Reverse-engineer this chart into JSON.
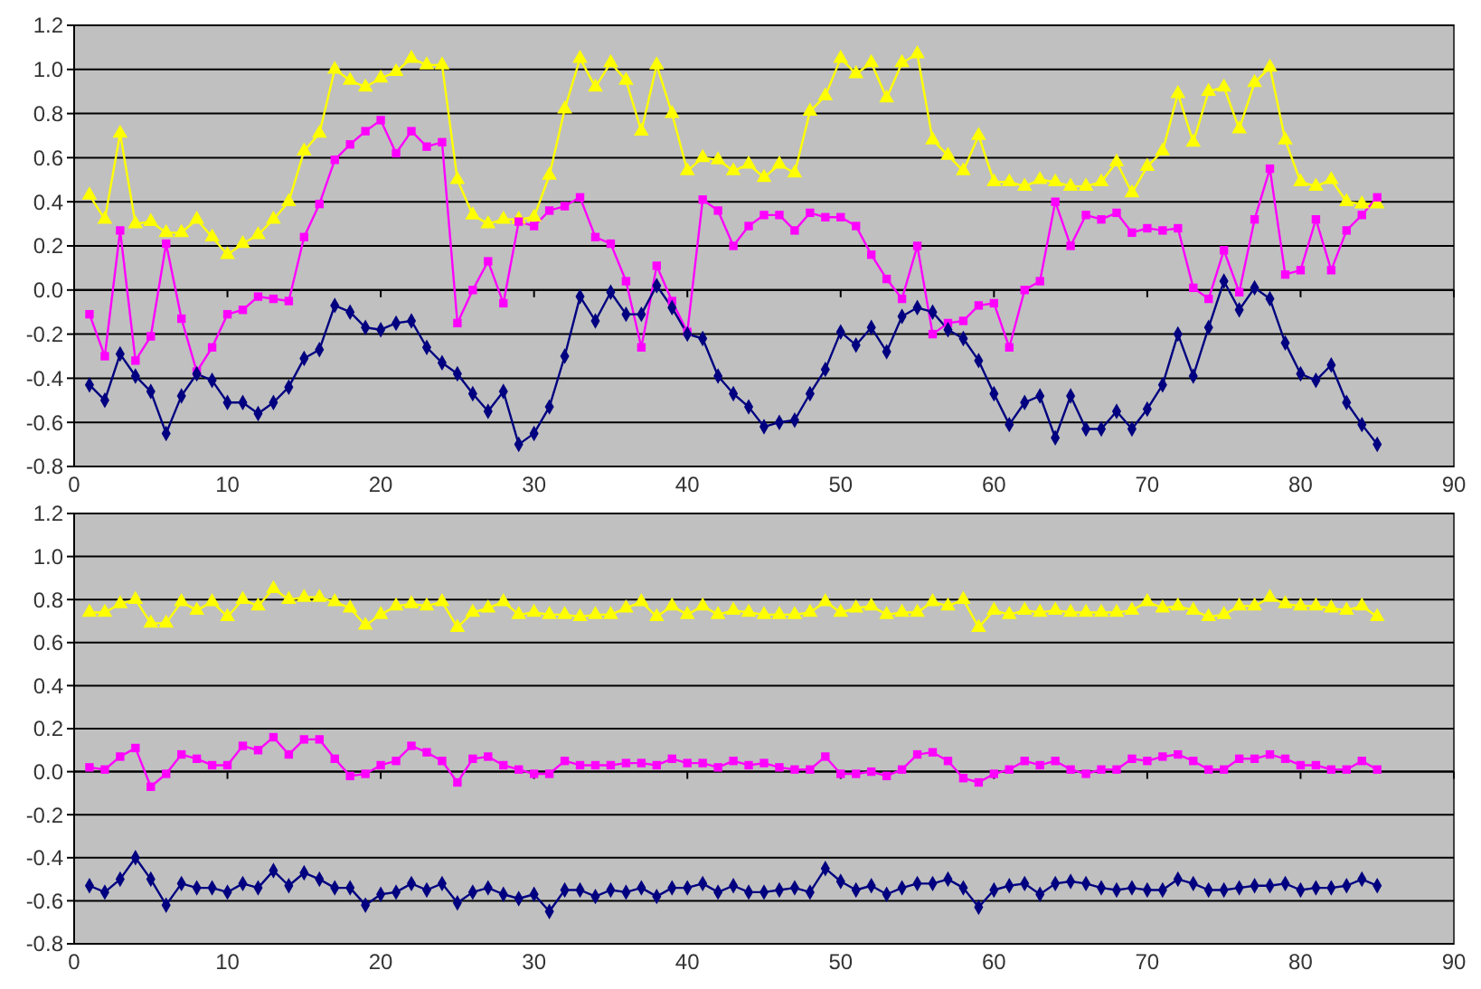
{
  "chart_data": [
    {
      "type": "line",
      "x": [
        1,
        2,
        3,
        4,
        5,
        6,
        7,
        8,
        9,
        10,
        11,
        12,
        13,
        14,
        15,
        16,
        17,
        18,
        19,
        20,
        21,
        22,
        23,
        24,
        25,
        26,
        27,
        28,
        29,
        30,
        31,
        32,
        33,
        34,
        35,
        36,
        37,
        38,
        39,
        40,
        41,
        42,
        43,
        44,
        45,
        46,
        47,
        48,
        49,
        50,
        51,
        52,
        53,
        54,
        55,
        56,
        57,
        58,
        59,
        60,
        61,
        62,
        63,
        64,
        65,
        66,
        67,
        68,
        69,
        70,
        71,
        72,
        73,
        74,
        75,
        76,
        77,
        78,
        79,
        80,
        81,
        82,
        83,
        84,
        85
      ],
      "xlim": [
        0,
        90
      ],
      "xticks": [
        0,
        10,
        20,
        30,
        40,
        50,
        60,
        70,
        80,
        90
      ],
      "ylim": [
        -0.8,
        1.2
      ],
      "yticks": [
        {
          "value": -0.8,
          "label": "-0.8"
        },
        {
          "value": -0.6,
          "label": "-0.6"
        },
        {
          "value": -0.4,
          "label": "-0.4"
        },
        {
          "value": -0.2,
          "label": "-0.2"
        },
        {
          "value": 0,
          "label": "0.0"
        },
        {
          "value": 0.2,
          "label": "0.2"
        },
        {
          "value": 0.4,
          "label": "0.4"
        },
        {
          "value": 0.6,
          "label": "0.6"
        },
        {
          "value": 0.8,
          "label": "0.8"
        },
        {
          "value": 1,
          "label": "1.0"
        },
        {
          "value": 1.2,
          "label": "1.2"
        }
      ],
      "grid": "y",
      "series": [
        {
          "color": "#ffff00",
          "marker": "triangle",
          "values": [
            0.43,
            0.32,
            0.71,
            0.3,
            0.31,
            0.26,
            0.26,
            0.32,
            0.24,
            0.16,
            0.21,
            0.25,
            0.32,
            0.4,
            0.63,
            0.71,
            1.0,
            0.95,
            0.92,
            0.96,
            0.99,
            1.05,
            1.02,
            1.02,
            0.5,
            0.34,
            0.3,
            0.32,
            0.32,
            0.33,
            0.52,
            0.82,
            1.05,
            0.92,
            1.03,
            0.95,
            0.72,
            1.02,
            0.8,
            0.54,
            0.6,
            0.59,
            0.54,
            0.57,
            0.51,
            0.57,
            0.53,
            0.81,
            0.88,
            1.05,
            0.98,
            1.03,
            0.87,
            1.03,
            1.07,
            0.68,
            0.61,
            0.54,
            0.7,
            0.49,
            0.49,
            0.47,
            0.5,
            0.49,
            0.47,
            0.47,
            0.49,
            0.58,
            0.44,
            0.56,
            0.63,
            0.89,
            0.67,
            0.9,
            0.92,
            0.73,
            0.94,
            1.01,
            0.68,
            0.49,
            0.47,
            0.5,
            0.4,
            0.39,
            0.39
          ]
        },
        {
          "color": "#ff00ff",
          "marker": "square",
          "values": [
            -0.11,
            -0.3,
            0.27,
            -0.32,
            -0.21,
            0.21,
            -0.13,
            -0.37,
            -0.26,
            -0.11,
            -0.09,
            -0.03,
            -0.04,
            -0.05,
            0.24,
            0.39,
            0.59,
            0.66,
            0.72,
            0.77,
            0.62,
            0.72,
            0.65,
            0.67,
            -0.15,
            0.0,
            0.13,
            -0.06,
            0.31,
            0.29,
            0.36,
            0.38,
            0.42,
            0.24,
            0.21,
            0.04,
            -0.26,
            0.11,
            -0.05,
            -0.19,
            0.41,
            0.36,
            0.2,
            0.29,
            0.34,
            0.34,
            0.27,
            0.35,
            0.33,
            0.33,
            0.29,
            0.16,
            0.05,
            -0.04,
            0.2,
            -0.2,
            -0.15,
            -0.14,
            -0.07,
            -0.06,
            -0.26,
            0.0,
            0.04,
            0.4,
            0.2,
            0.34,
            0.32,
            0.35,
            0.26,
            0.28,
            0.27,
            0.28,
            0.01,
            -0.04,
            0.18,
            -0.01,
            0.32,
            0.55,
            0.07,
            0.09,
            0.32,
            0.09,
            0.27,
            0.34,
            0.42
          ]
        },
        {
          "color": "#000080",
          "marker": "diamond",
          "values": [
            -0.43,
            -0.5,
            -0.29,
            -0.39,
            -0.46,
            -0.65,
            -0.48,
            -0.38,
            -0.41,
            -0.51,
            -0.51,
            -0.56,
            -0.51,
            -0.44,
            -0.31,
            -0.27,
            -0.07,
            -0.1,
            -0.17,
            -0.18,
            -0.15,
            -0.14,
            -0.26,
            -0.33,
            -0.38,
            -0.47,
            -0.55,
            -0.46,
            -0.7,
            -0.65,
            -0.53,
            -0.3,
            -0.03,
            -0.14,
            -0.01,
            -0.11,
            -0.11,
            0.02,
            -0.08,
            -0.2,
            -0.22,
            -0.39,
            -0.47,
            -0.53,
            -0.62,
            -0.6,
            -0.59,
            -0.47,
            -0.36,
            -0.19,
            -0.25,
            -0.17,
            -0.28,
            -0.12,
            -0.08,
            -0.1,
            -0.18,
            -0.22,
            -0.32,
            -0.47,
            -0.61,
            -0.51,
            -0.48,
            -0.67,
            -0.48,
            -0.63,
            -0.63,
            -0.55,
            -0.63,
            -0.54,
            -0.43,
            -0.2,
            -0.39,
            -0.17,
            0.04,
            -0.09,
            0.01,
            -0.04,
            -0.24,
            -0.38,
            -0.41,
            -0.34,
            -0.51,
            -0.61,
            -0.7
          ]
        }
      ]
    },
    {
      "type": "line",
      "x": [
        1,
        2,
        3,
        4,
        5,
        6,
        7,
        8,
        9,
        10,
        11,
        12,
        13,
        14,
        15,
        16,
        17,
        18,
        19,
        20,
        21,
        22,
        23,
        24,
        25,
        26,
        27,
        28,
        29,
        30,
        31,
        32,
        33,
        34,
        35,
        36,
        37,
        38,
        39,
        40,
        41,
        42,
        43,
        44,
        45,
        46,
        47,
        48,
        49,
        50,
        51,
        52,
        53,
        54,
        55,
        56,
        57,
        58,
        59,
        60,
        61,
        62,
        63,
        64,
        65,
        66,
        67,
        68,
        69,
        70,
        71,
        72,
        73,
        74,
        75,
        76,
        77,
        78,
        79,
        80,
        81,
        82,
        83,
        84,
        85
      ],
      "xlim": [
        0,
        90
      ],
      "xticks": [
        0,
        10,
        20,
        30,
        40,
        50,
        60,
        70,
        80,
        90
      ],
      "ylim": [
        -0.8,
        1.2
      ],
      "yticks": [
        {
          "value": -0.8,
          "label": "-0.8"
        },
        {
          "value": -0.6,
          "label": "-0.6"
        },
        {
          "value": -0.4,
          "label": "-0.4"
        },
        {
          "value": -0.2,
          "label": "-0.2"
        },
        {
          "value": 0,
          "label": "0.0"
        },
        {
          "value": 0.2,
          "label": "0.2"
        },
        {
          "value": 0.4,
          "label": "0.4"
        },
        {
          "value": 0.6,
          "label": "0.6"
        },
        {
          "value": 0.8,
          "label": "0.8"
        },
        {
          "value": 1,
          "label": "1.0"
        },
        {
          "value": 1.2,
          "label": "1.2"
        }
      ],
      "grid": "y",
      "series": [
        {
          "color": "#ffff00",
          "marker": "triangle",
          "values": [
            0.74,
            0.74,
            0.78,
            0.8,
            0.69,
            0.69,
            0.79,
            0.75,
            0.79,
            0.72,
            0.8,
            0.77,
            0.85,
            0.8,
            0.81,
            0.81,
            0.79,
            0.76,
            0.68,
            0.73,
            0.77,
            0.78,
            0.77,
            0.79,
            0.67,
            0.74,
            0.76,
            0.79,
            0.73,
            0.74,
            0.73,
            0.73,
            0.72,
            0.73,
            0.73,
            0.76,
            0.79,
            0.72,
            0.77,
            0.73,
            0.77,
            0.73,
            0.75,
            0.74,
            0.73,
            0.73,
            0.73,
            0.74,
            0.79,
            0.74,
            0.76,
            0.77,
            0.73,
            0.74,
            0.74,
            0.79,
            0.77,
            0.8,
            0.67,
            0.75,
            0.73,
            0.75,
            0.74,
            0.75,
            0.74,
            0.74,
            0.74,
            0.74,
            0.75,
            0.79,
            0.76,
            0.77,
            0.75,
            0.72,
            0.73,
            0.77,
            0.77,
            0.81,
            0.78,
            0.77,
            0.77,
            0.76,
            0.75,
            0.77,
            0.72
          ]
        },
        {
          "color": "#ff00ff",
          "marker": "square",
          "values": [
            0.02,
            0.01,
            0.07,
            0.11,
            -0.07,
            -0.01,
            0.08,
            0.06,
            0.03,
            0.03,
            0.12,
            0.1,
            0.16,
            0.08,
            0.15,
            0.15,
            0.06,
            -0.02,
            -0.01,
            0.03,
            0.05,
            0.12,
            0.09,
            0.05,
            -0.05,
            0.06,
            0.07,
            0.03,
            0.01,
            -0.01,
            -0.01,
            0.05,
            0.03,
            0.03,
            0.03,
            0.04,
            0.04,
            0.03,
            0.06,
            0.04,
            0.04,
            0.02,
            0.05,
            0.03,
            0.04,
            0.02,
            0.01,
            0.01,
            0.07,
            -0.01,
            -0.01,
            0.0,
            -0.02,
            0.01,
            0.08,
            0.09,
            0.05,
            -0.03,
            -0.05,
            -0.01,
            0.01,
            0.05,
            0.03,
            0.05,
            0.01,
            -0.01,
            0.01,
            0.01,
            0.06,
            0.05,
            0.07,
            0.08,
            0.05,
            0.01,
            0.01,
            0.06,
            0.06,
            0.08,
            0.06,
            0.03,
            0.03,
            0.01,
            0.01,
            0.05,
            0.01
          ]
        },
        {
          "color": "#000080",
          "marker": "diamond",
          "values": [
            -0.53,
            -0.56,
            -0.5,
            -0.4,
            -0.5,
            -0.62,
            -0.52,
            -0.54,
            -0.54,
            -0.56,
            -0.52,
            -0.54,
            -0.46,
            -0.53,
            -0.47,
            -0.5,
            -0.54,
            -0.54,
            -0.62,
            -0.57,
            -0.56,
            -0.52,
            -0.55,
            -0.52,
            -0.61,
            -0.56,
            -0.54,
            -0.57,
            -0.59,
            -0.57,
            -0.65,
            -0.55,
            -0.55,
            -0.58,
            -0.55,
            -0.56,
            -0.54,
            -0.58,
            -0.54,
            -0.54,
            -0.52,
            -0.56,
            -0.53,
            -0.56,
            -0.56,
            -0.55,
            -0.54,
            -0.56,
            -0.45,
            -0.51,
            -0.55,
            -0.53,
            -0.57,
            -0.54,
            -0.52,
            -0.52,
            -0.5,
            -0.54,
            -0.63,
            -0.55,
            -0.53,
            -0.52,
            -0.57,
            -0.52,
            -0.51,
            -0.52,
            -0.54,
            -0.55,
            -0.54,
            -0.55,
            -0.55,
            -0.5,
            -0.52,
            -0.55,
            -0.55,
            -0.54,
            -0.53,
            -0.53,
            -0.52,
            -0.55,
            -0.54,
            -0.54,
            -0.53,
            -0.5,
            -0.53
          ]
        }
      ]
    }
  ]
}
